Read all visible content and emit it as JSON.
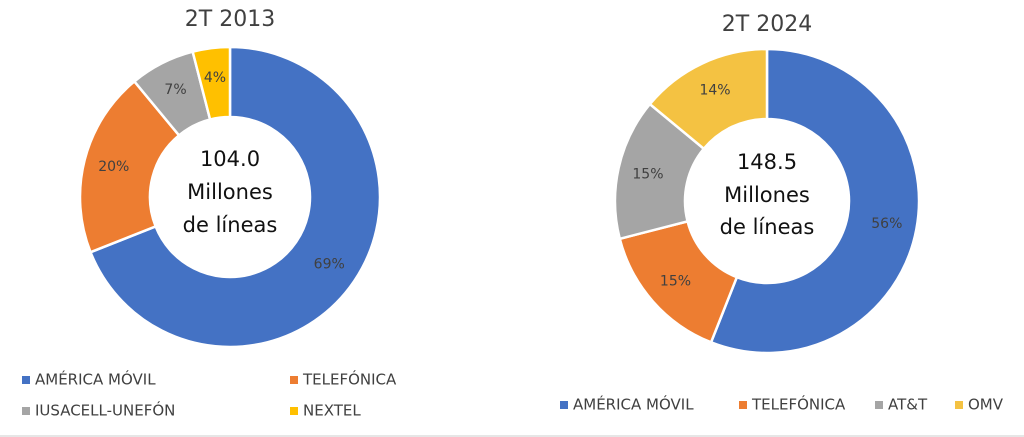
{
  "chart_data": [
    {
      "type": "donut",
      "title": "2T 2013",
      "center_text": [
        "104.0",
        "Millones",
        "de líneas"
      ],
      "categories": [
        "AMÉRICA MÓVIL",
        "TELEFÓNICA",
        "IUSACELL-UNEFÓN",
        "NEXTEL"
      ],
      "values": [
        69,
        20,
        7,
        4
      ],
      "value_labels": [
        "69%",
        "20%",
        "7%",
        "4%"
      ],
      "colors": [
        "#4472c4",
        "#ed7d31",
        "#a5a5a5",
        "#ffc000"
      ]
    },
    {
      "type": "donut",
      "title": "2T 2024",
      "center_text": [
        "148.5",
        "Millones",
        "de líneas"
      ],
      "categories": [
        "AMÉRICA MÓVIL",
        "TELEFÓNICA",
        "AT&T",
        "OMV"
      ],
      "values": [
        56,
        15,
        15,
        14
      ],
      "value_labels": [
        "56%",
        "15%",
        "15%",
        "14%"
      ],
      "colors": [
        "#4472c4",
        "#ed7d31",
        "#a5a5a5",
        "#f4c242"
      ]
    }
  ]
}
